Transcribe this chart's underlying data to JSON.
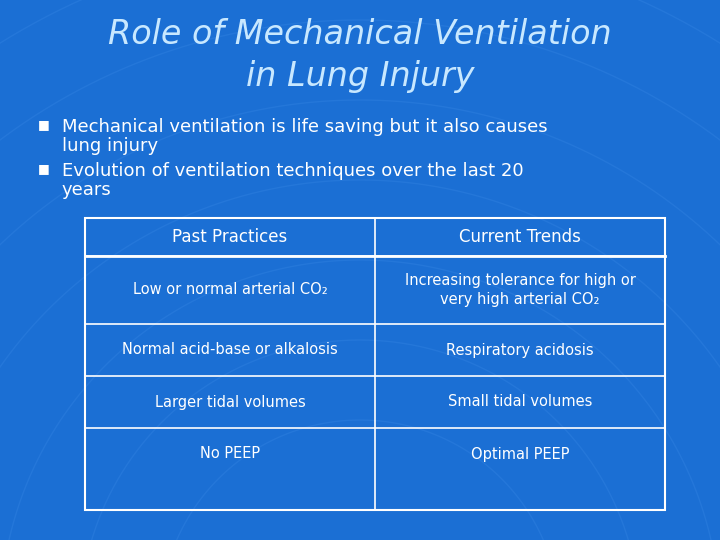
{
  "title_line1": "Role of Mechanical Ventilation",
  "title_line2": "in Lung Injury",
  "bullet1_line1": "Mechanical ventilation is life saving but it also causes",
  "bullet1_line2": "lung injury",
  "bullet2_line1": "Evolution of ventilation techniques over the last 20",
  "bullet2_line2": "years",
  "table_headers": [
    "Past Practices",
    "Current Trends"
  ],
  "table_rows": [
    [
      "Low or normal arterial CO₂",
      "Increasing tolerance for high or\nvery high arterial CO₂"
    ],
    [
      "Normal acid-base or alkalosis",
      "Respiratory acidosis"
    ],
    [
      "Larger tidal volumes",
      "Small tidal volumes"
    ],
    [
      "No PEEP",
      "Optimal PEEP"
    ]
  ],
  "bg_color": "#1B6FD4",
  "title_color": "#C8E8FF",
  "bullet_color": "#FFFFFF",
  "table_header_text": "#FFFFFF",
  "table_cell_text": "#FFFFFF",
  "table_border_color": "#FFFFFF",
  "arc_color": "#2E7FDF",
  "title_fontsize": 24,
  "bullet_fontsize": 13,
  "table_header_fontsize": 12,
  "table_cell_fontsize": 10.5
}
